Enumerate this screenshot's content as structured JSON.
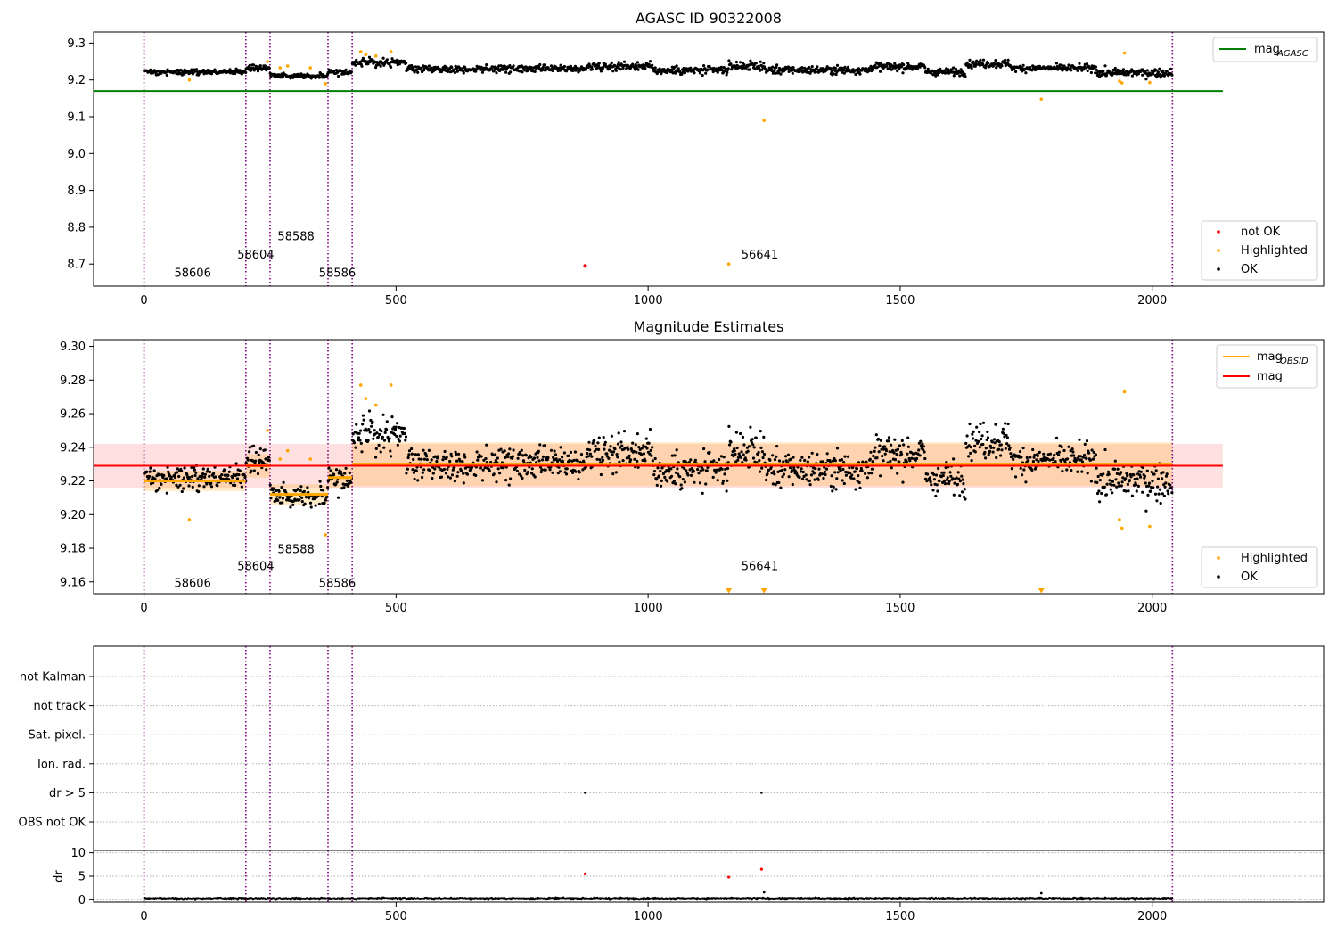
{
  "chart_data": [
    {
      "type": "scatter",
      "title": "AGASC ID 90322008",
      "xlim": [
        -100,
        2340
      ],
      "ylim": [
        8.64,
        9.33
      ],
      "xticks": [
        0,
        500,
        1000,
        1500,
        2000
      ],
      "yticks": [
        8.7,
        8.8,
        8.9,
        9.0,
        9.1,
        9.2,
        9.3
      ],
      "legend_lines": [
        {
          "label": "mag",
          "sub": "AGASC",
          "color": "#008000"
        }
      ],
      "legend_points": [
        {
          "label": "not OK",
          "color": "#ff0000"
        },
        {
          "label": "Highlighted",
          "color": "#ffa500"
        },
        {
          "label": "OK",
          "color": "#000000"
        }
      ],
      "hline": {
        "y": 9.17,
        "x0": -100,
        "x1": 2140,
        "color": "#008000"
      },
      "obs_boundaries": [
        0,
        202,
        250,
        365,
        413,
        2040
      ],
      "obs_labels": [
        {
          "text": "58606",
          "x": 60,
          "y": 8.665
        },
        {
          "text": "58604",
          "x": 185,
          "y": 8.715
        },
        {
          "text": "58588",
          "x": 265,
          "y": 8.765
        },
        {
          "text": "58586",
          "x": 347,
          "y": 8.665
        },
        {
          "text": "56641",
          "x": 1185,
          "y": 8.715
        }
      ],
      "ok_segments": [
        {
          "x0": 0,
          "x1": 202,
          "y": 9.222,
          "noise": 0.006
        },
        {
          "x0": 202,
          "x1": 250,
          "y": 9.232,
          "noise": 0.006
        },
        {
          "x0": 250,
          "x1": 365,
          "y": 9.212,
          "noise": 0.006
        },
        {
          "x0": 365,
          "x1": 413,
          "y": 9.222,
          "noise": 0.008
        },
        {
          "x0": 413,
          "x1": 520,
          "y": 9.247,
          "noise": 0.009
        },
        {
          "x0": 520,
          "x1": 880,
          "y": 9.23,
          "noise": 0.008
        },
        {
          "x0": 880,
          "x1": 1010,
          "y": 9.238,
          "noise": 0.009
        },
        {
          "x0": 1010,
          "x1": 1160,
          "y": 9.226,
          "noise": 0.009
        },
        {
          "x0": 1160,
          "x1": 1230,
          "y": 9.238,
          "noise": 0.009
        },
        {
          "x0": 1230,
          "x1": 1440,
          "y": 9.227,
          "noise": 0.009
        },
        {
          "x0": 1440,
          "x1": 1550,
          "y": 9.236,
          "noise": 0.009
        },
        {
          "x0": 1550,
          "x1": 1630,
          "y": 9.222,
          "noise": 0.008
        },
        {
          "x0": 1630,
          "x1": 1720,
          "y": 9.244,
          "noise": 0.009
        },
        {
          "x0": 1720,
          "x1": 1890,
          "y": 9.232,
          "noise": 0.008
        },
        {
          "x0": 1890,
          "x1": 2040,
          "y": 9.22,
          "noise": 0.01
        }
      ],
      "highlighted": [
        [
          90,
          9.2
        ],
        [
          245,
          9.25
        ],
        [
          270,
          9.233
        ],
        [
          285,
          9.238
        ],
        [
          330,
          9.233
        ],
        [
          360,
          9.19
        ],
        [
          430,
          9.277
        ],
        [
          440,
          9.269
        ],
        [
          460,
          9.265
        ],
        [
          490,
          9.277
        ],
        [
          1160,
          8.7
        ],
        [
          1230,
          9.09
        ],
        [
          1780,
          9.148
        ],
        [
          1935,
          9.197
        ],
        [
          1940,
          9.192
        ],
        [
          1945,
          9.273
        ],
        [
          1995,
          9.193
        ]
      ],
      "not_ok": [
        [
          875,
          8.695
        ]
      ]
    },
    {
      "type": "scatter",
      "title": "Magnitude Estimates",
      "xlim": [
        -100,
        2340
      ],
      "ylim": [
        9.153,
        9.304
      ],
      "xticks": [
        0,
        500,
        1000,
        1500,
        2000
      ],
      "yticks": [
        9.16,
        9.18,
        9.2,
        9.22,
        9.24,
        9.26,
        9.28,
        9.3
      ],
      "legend_lines": [
        {
          "label": "mag",
          "sub": "OBSID",
          "color": "#ffa500"
        },
        {
          "label": "mag",
          "sub": "",
          "color": "#ff0000"
        }
      ],
      "legend_points": [
        {
          "label": "Highlighted",
          "color": "#ffa500"
        },
        {
          "label": "OK",
          "color": "#000000"
        }
      ],
      "mag": {
        "y": 9.229,
        "y_lo": 9.216,
        "y_hi": 9.242,
        "x0": -100,
        "x1": 2140
      },
      "obsid_mags": [
        {
          "x0": 0,
          "x1": 202,
          "y": 9.22,
          "lo": 9.214,
          "hi": 9.226
        },
        {
          "x0": 202,
          "x1": 250,
          "y": 9.229,
          "lo": 9.222,
          "hi": 9.236
        },
        {
          "x0": 250,
          "x1": 365,
          "y": 9.212,
          "lo": 9.206,
          "hi": 9.218
        },
        {
          "x0": 365,
          "x1": 413,
          "y": 9.222,
          "lo": 9.216,
          "hi": 9.228
        },
        {
          "x0": 413,
          "x1": 2040,
          "y": 9.23,
          "lo": 9.217,
          "hi": 9.243
        }
      ],
      "obs_boundaries": [
        0,
        202,
        250,
        365,
        413,
        2040
      ],
      "obs_labels": [
        {
          "text": "58606",
          "x": 60,
          "y": 9.157
        },
        {
          "text": "58604",
          "x": 185,
          "y": 9.167
        },
        {
          "text": "58588",
          "x": 265,
          "y": 9.177
        },
        {
          "text": "58586",
          "x": 347,
          "y": 9.157
        },
        {
          "text": "56641",
          "x": 1185,
          "y": 9.167
        }
      ],
      "highlighted": [
        [
          90,
          9.197
        ],
        [
          245,
          9.25
        ],
        [
          270,
          9.233
        ],
        [
          285,
          9.238
        ],
        [
          330,
          9.233
        ],
        [
          360,
          9.188
        ],
        [
          430,
          9.277
        ],
        [
          440,
          9.269
        ],
        [
          460,
          9.265
        ],
        [
          490,
          9.277
        ],
        [
          1935,
          9.197
        ],
        [
          1940,
          9.192
        ],
        [
          1945,
          9.273
        ],
        [
          1995,
          9.193
        ]
      ],
      "below_range_markers": [
        1160,
        1230,
        1780
      ]
    },
    {
      "type": "scatter",
      "title": "",
      "xlim": [
        -100,
        2340
      ],
      "categories": [
        "not Kalman",
        "not track",
        "Sat. pixel.",
        "Ion. rad.",
        "dr > 5",
        "OBS not OK"
      ],
      "points": [
        [
          875,
          "dr > 5"
        ],
        [
          1225,
          "dr > 5"
        ]
      ],
      "obs_boundaries": [
        0,
        202,
        250,
        365,
        413,
        2040
      ]
    },
    {
      "type": "scatter",
      "title": "",
      "ylabel": "dr",
      "xlim": [
        -100,
        2340
      ],
      "ylim": [
        -0.5,
        10.5
      ],
      "xticks": [
        0,
        500,
        1000,
        1500,
        2000
      ],
      "yticks": [
        0,
        5,
        10
      ],
      "baseline": {
        "y": 0.25,
        "noise": 0.15
      },
      "red_points": [
        [
          875,
          5.5
        ],
        [
          1160,
          4.8
        ],
        [
          1225,
          6.5
        ]
      ],
      "black_points": [
        [
          1230,
          1.6
        ],
        [
          1780,
          1.4
        ]
      ],
      "obs_boundaries": [
        0,
        202,
        250,
        365,
        413,
        2040
      ]
    }
  ]
}
